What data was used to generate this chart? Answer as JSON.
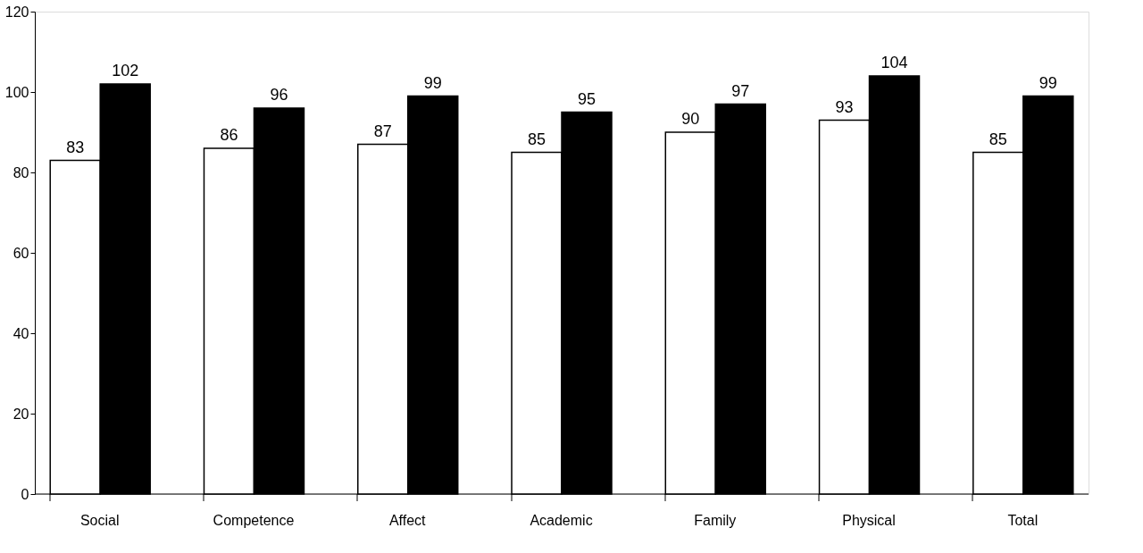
{
  "chart_data": {
    "type": "bar",
    "categories": [
      "Social",
      "Competence",
      "Affect",
      "Academic",
      "Family",
      "Physical",
      "Total"
    ],
    "series": [
      {
        "color": "#ffffff",
        "values": [
          83,
          86,
          87,
          85,
          90,
          93,
          85
        ]
      },
      {
        "color": "#000000",
        "values": [
          102,
          96,
          99,
          95,
          97,
          104,
          99
        ]
      }
    ],
    "ylim": [
      0,
      120
    ],
    "yticks": [
      0,
      20,
      40,
      60,
      80,
      100,
      120
    ],
    "data_labels": true,
    "grid": false,
    "legend": false
  }
}
